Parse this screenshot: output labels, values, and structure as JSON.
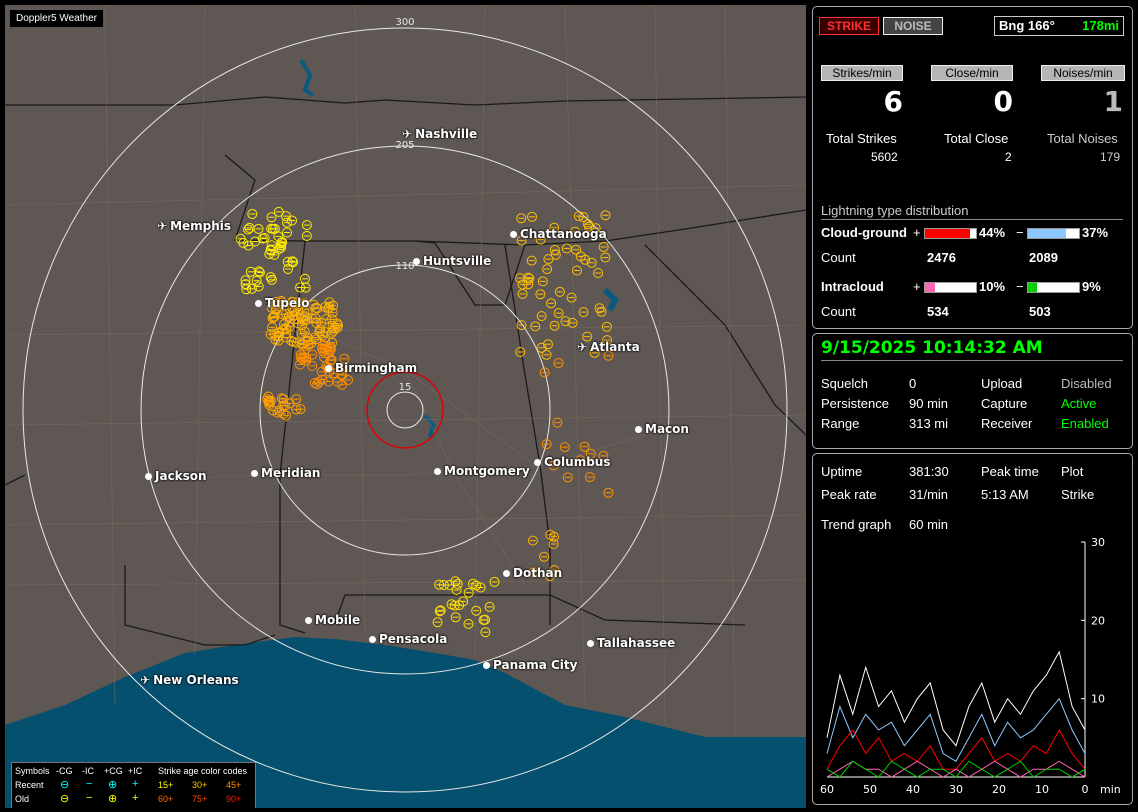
{
  "app_title": "Doppler5 Weather",
  "map": {
    "ring_labels": [
      "300",
      "205",
      "110",
      "15"
    ],
    "cities": [
      {
        "name": "Nashville",
        "icon": "plane-icon"
      },
      {
        "name": "Memphis",
        "icon": "plane-icon"
      },
      {
        "name": "Chattanooga",
        "icon": "dot-icon"
      },
      {
        "name": "Huntsville",
        "icon": "dot-icon"
      },
      {
        "name": "Tupelo",
        "icon": "dot-icon"
      },
      {
        "name": "Atlanta",
        "icon": "plane-icon"
      },
      {
        "name": "Birmingham",
        "icon": "dot-icon"
      },
      {
        "name": "Macon",
        "icon": "dot-icon"
      },
      {
        "name": "Jackson",
        "icon": "dot-icon"
      },
      {
        "name": "Meridian",
        "icon": "dot-icon"
      },
      {
        "name": "Montgomery",
        "icon": "dot-icon"
      },
      {
        "name": "Columbus",
        "icon": "dot-icon"
      },
      {
        "name": "Dothan",
        "icon": "dot-icon"
      },
      {
        "name": "Mobile",
        "icon": "dot-icon"
      },
      {
        "name": "Pensacola",
        "icon": "dot-icon"
      },
      {
        "name": "Tallahassee",
        "icon": "dot-icon"
      },
      {
        "name": "Panama City",
        "icon": "dot-icon"
      },
      {
        "name": "New Orleans",
        "icon": "plane-icon"
      }
    ],
    "legend": {
      "symbols_label": "Symbols",
      "cols": [
        "-CG",
        "-IC",
        "+CG",
        "+IC"
      ],
      "rows": [
        "Recent",
        "Old"
      ],
      "age_title": "Strike age color codes",
      "age_recent": [
        "15+",
        "30+",
        "45+"
      ],
      "age_old": [
        "60+",
        "75+",
        "90+"
      ],
      "age_colors": [
        "#ffff00",
        "#ffc800",
        "#ff9000",
        "#ff7000",
        "#ff5000",
        "#ff2000"
      ]
    }
  },
  "status": {
    "strike_btn": "STRIKE",
    "noise_btn": "NOISE",
    "bearing": "Bng 166°",
    "distance": "178mi",
    "strikes_min_label": "Strikes/min",
    "close_min_label": "Close/min",
    "noises_min_label": "Noises/min",
    "strikes_min": "6",
    "close_min": "0",
    "noises_min": "1",
    "total_strikes_label": "Total Strikes",
    "total_close_label": "Total Close",
    "total_noises_label": "Total Noises",
    "total_strikes": "5602",
    "total_close": "2",
    "total_noises": "179",
    "dist_title": "Lightning type distribution",
    "cg_label": "Cloud-ground",
    "ic_label": "Intracloud",
    "count_label": "Count",
    "plus": "+",
    "minus": "−",
    "cg_pos_pct": "44%",
    "cg_neg_pct": "37%",
    "ic_pos_pct": "10%",
    "ic_neg_pct": "9%",
    "cg_pos_count": "2476",
    "cg_neg_count": "2089",
    "ic_pos_count": "534",
    "ic_neg_count": "503",
    "cg_pos_frac": 0.44,
    "cg_neg_frac": 0.37,
    "ic_pos_frac": 0.1,
    "ic_neg_frac": 0.09,
    "cg_pos_color": "#ff0000",
    "cg_neg_color": "#8cc8ff",
    "ic_pos_color": "#ff64b4",
    "ic_neg_color": "#00d000"
  },
  "settings": {
    "datetime": "9/15/2025 10:14:32 AM",
    "squelch_label": "Squelch",
    "squelch": "0",
    "persistence_label": "Persistence",
    "persistence": "90 min",
    "range_label": "Range",
    "range": "313 mi",
    "upload_label": "Upload",
    "upload": "Disabled",
    "capture_label": "Capture",
    "capture": "Active",
    "receiver_label": "Receiver",
    "receiver": "Enabled"
  },
  "trend": {
    "uptime_label": "Uptime",
    "uptime": "381:30",
    "peak_time_label": "Peak time",
    "peak_time": "5:13 AM",
    "plot_label": "Plot",
    "plot": "Strike",
    "peak_rate_label": "Peak rate",
    "peak_rate": "31/min",
    "trend_label": "Trend graph",
    "trend_value": "60 min",
    "x_unit": "min",
    "chart_data": {
      "type": "line",
      "x_ticks": [
        60,
        50,
        40,
        30,
        20,
        10,
        0
      ],
      "y_ticks": [
        10,
        20,
        30
      ],
      "ylim": [
        0,
        30
      ],
      "xlim": [
        60,
        0
      ],
      "x": [
        60,
        57,
        54,
        51,
        48,
        45,
        42,
        39,
        36,
        33,
        30,
        27,
        24,
        21,
        18,
        15,
        12,
        9,
        6,
        3,
        0
      ],
      "series": [
        {
          "color": "#ffffff",
          "values": [
            5,
            13,
            8,
            14,
            9,
            11,
            7,
            10,
            12,
            6,
            4,
            9,
            12,
            7,
            10,
            8,
            11,
            13,
            16,
            9,
            6
          ]
        },
        {
          "color": "#8cc8ff",
          "values": [
            3,
            9,
            5,
            8,
            6,
            7,
            4,
            6,
            8,
            3,
            2,
            5,
            8,
            4,
            7,
            5,
            6,
            8,
            10,
            6,
            3
          ]
        },
        {
          "color": "#ff0000",
          "values": [
            1,
            4,
            6,
            3,
            5,
            2,
            3,
            2,
            4,
            1,
            1,
            3,
            5,
            2,
            3,
            2,
            4,
            3,
            6,
            3,
            1
          ]
        },
        {
          "color": "#ff64b4",
          "values": [
            0,
            1,
            2,
            1,
            1,
            0,
            1,
            2,
            1,
            0,
            1,
            0,
            1,
            2,
            1,
            0,
            1,
            1,
            2,
            1,
            0
          ]
        },
        {
          "color": "#00d000",
          "values": [
            1,
            0,
            2,
            1,
            0,
            2,
            1,
            0,
            1,
            1,
            0,
            2,
            1,
            0,
            1,
            2,
            0,
            1,
            1,
            0,
            1
          ]
        }
      ]
    }
  }
}
